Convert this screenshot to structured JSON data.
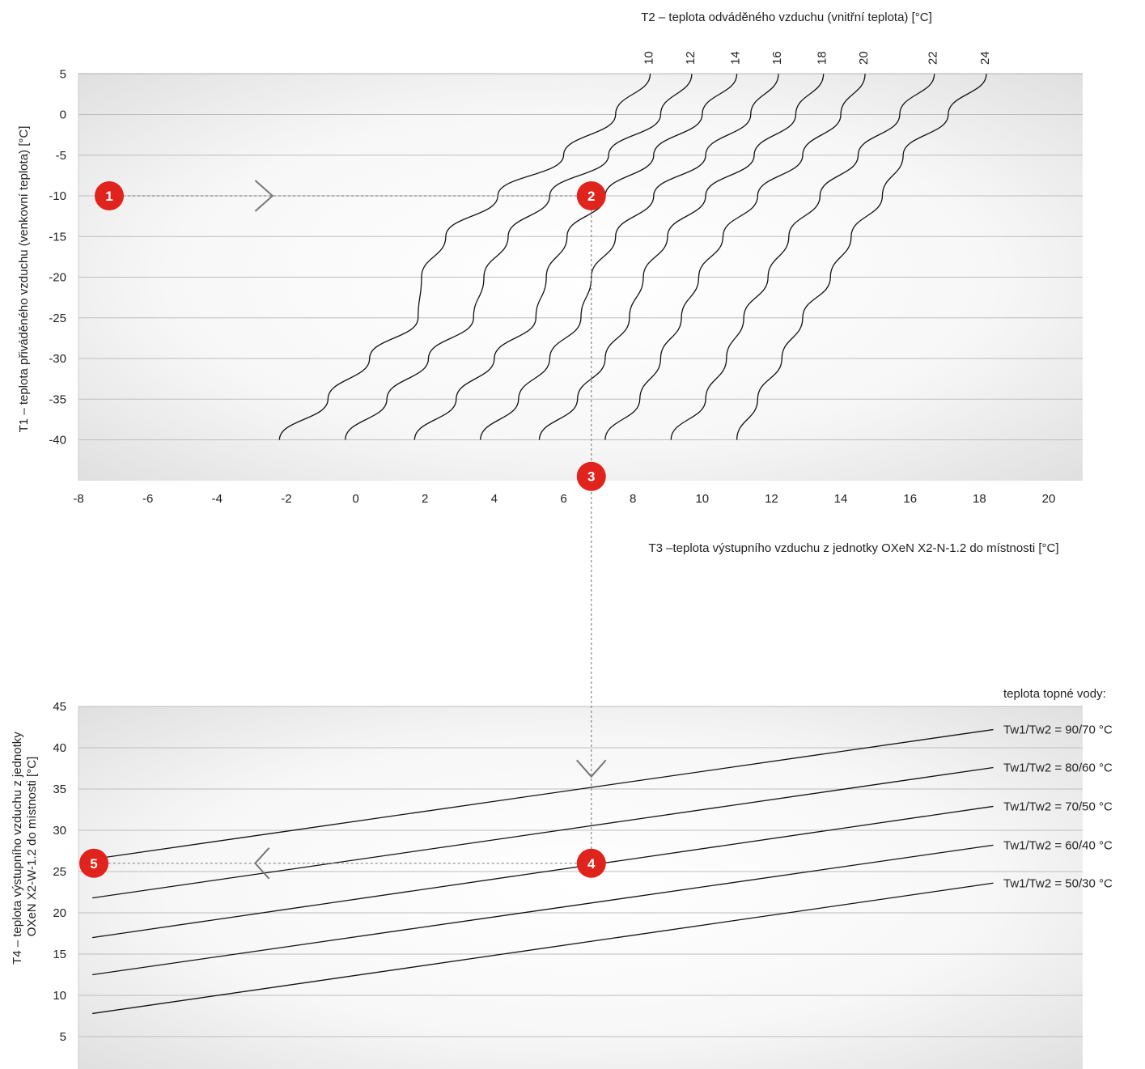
{
  "chart_data": [
    {
      "id": "top",
      "type": "line",
      "xlabel": "T3 –teplota výstupního vzduchu z jednotky OXeN X2-N-1.2 do místnosti [°C]",
      "ylabel": "T1 – teplota přiváděného vzduchu (venkovní teplota) [°C]",
      "top_axis_label": "T2 – teplota odváděného vzduchu (vnitřní teplota) [°C]",
      "xlim": [
        -8,
        21
      ],
      "ylim": [
        -45,
        5
      ],
      "x_ticks": [
        "-8",
        "-6",
        "-4",
        "-2",
        "0",
        "2",
        "4",
        "6",
        "8",
        "10",
        "12",
        "14",
        "16",
        "18",
        "20"
      ],
      "y_ticks": [
        "5",
        "0",
        "-5",
        "-10",
        "-15",
        "-20",
        "-25",
        "-30",
        "-35",
        "-40"
      ],
      "grid": true,
      "series": [
        {
          "name": "10",
          "points": [
            [
              -2.2,
              -40
            ],
            [
              -0.8,
              -35
            ],
            [
              0.4,
              -30
            ],
            [
              1.8,
              -25
            ],
            [
              1.9,
              -20
            ],
            [
              2.6,
              -15
            ],
            [
              4.1,
              -10
            ],
            [
              6.0,
              -5
            ],
            [
              7.5,
              0
            ],
            [
              8.5,
              5
            ]
          ]
        },
        {
          "name": "12",
          "points": [
            [
              -0.3,
              -40
            ],
            [
              0.9,
              -35
            ],
            [
              2.1,
              -30
            ],
            [
              3.4,
              -25
            ],
            [
              3.7,
              -20
            ],
            [
              4.4,
              -15
            ],
            [
              5.6,
              -10
            ],
            [
              7.3,
              -5
            ],
            [
              8.8,
              0
            ],
            [
              9.7,
              5
            ]
          ]
        },
        {
          "name": "14",
          "points": [
            [
              1.7,
              -40
            ],
            [
              2.9,
              -35
            ],
            [
              4.0,
              -30
            ],
            [
              5.2,
              -25
            ],
            [
              5.5,
              -20
            ],
            [
              6.1,
              -15
            ],
            [
              7.2,
              -10
            ],
            [
              8.6,
              -5
            ],
            [
              10.0,
              0
            ],
            [
              11.0,
              5
            ]
          ]
        },
        {
          "name": "16",
          "points": [
            [
              3.6,
              -40
            ],
            [
              4.7,
              -35
            ],
            [
              5.6,
              -30
            ],
            [
              6.5,
              -25
            ],
            [
              6.8,
              -20
            ],
            [
              7.5,
              -15
            ],
            [
              8.6,
              -10
            ],
            [
              10.1,
              -5
            ],
            [
              11.4,
              0
            ],
            [
              12.2,
              5
            ]
          ]
        },
        {
          "name": "18",
          "points": [
            [
              5.3,
              -40
            ],
            [
              6.4,
              -35
            ],
            [
              7.2,
              -30
            ],
            [
              7.9,
              -25
            ],
            [
              8.3,
              -20
            ],
            [
              9.0,
              -15
            ],
            [
              10.1,
              -10
            ],
            [
              11.5,
              -5
            ],
            [
              12.7,
              0
            ],
            [
              13.5,
              5
            ]
          ]
        },
        {
          "name": "20",
          "points": [
            [
              7.2,
              -40
            ],
            [
              8.2,
              -35
            ],
            [
              8.8,
              -30
            ],
            [
              9.4,
              -25
            ],
            [
              9.9,
              -20
            ],
            [
              10.6,
              -15
            ],
            [
              11.6,
              -10
            ],
            [
              12.9,
              -5
            ],
            [
              14.0,
              0
            ],
            [
              14.7,
              5
            ]
          ]
        },
        {
          "name": "22",
          "points": [
            [
              9.1,
              -40
            ],
            [
              10.1,
              -35
            ],
            [
              10.7,
              -30
            ],
            [
              11.2,
              -25
            ],
            [
              11.9,
              -20
            ],
            [
              12.5,
              -15
            ],
            [
              13.4,
              -10
            ],
            [
              14.5,
              -5
            ],
            [
              15.7,
              0
            ],
            [
              16.7,
              5
            ]
          ]
        },
        {
          "name": "24",
          "points": [
            [
              11.0,
              -40
            ],
            [
              11.6,
              -35
            ],
            [
              12.3,
              -30
            ],
            [
              12.9,
              -25
            ],
            [
              13.7,
              -20
            ],
            [
              14.3,
              -15
            ],
            [
              15.2,
              -10
            ],
            [
              15.8,
              -5
            ],
            [
              17.1,
              0
            ],
            [
              18.2,
              5
            ]
          ]
        }
      ]
    },
    {
      "id": "bottom",
      "type": "line",
      "xlabel": "",
      "ylabel": "T4 – teplota výstupního vzduchu z jednotky OXeN X2-W-1.2 do místnosti [°C]",
      "xlim": [
        -8,
        21
      ],
      "ylim": [
        0,
        45
      ],
      "y_ticks": [
        "45",
        "40",
        "35",
        "30",
        "25",
        "20",
        "15",
        "10",
        "5"
      ],
      "grid": true,
      "legend_title": "teplota topné vody:",
      "series": [
        {
          "name": "Tw1/Tw2 = 90/70 °C",
          "points": [
            [
              -7.6,
              26.5
            ],
            [
              18.4,
              42.2
            ]
          ]
        },
        {
          "name": "Tw1/Tw2 = 80/60 °C",
          "points": [
            [
              -7.6,
              21.8
            ],
            [
              18.4,
              37.6
            ]
          ]
        },
        {
          "name": "Tw1/Tw2 = 70/50 °C",
          "points": [
            [
              -7.6,
              17.0
            ],
            [
              18.4,
              32.9
            ]
          ]
        },
        {
          "name": "Tw1/Tw2 = 60/40 °C",
          "points": [
            [
              -7.6,
              12.5
            ],
            [
              18.4,
              28.2
            ]
          ]
        },
        {
          "name": "Tw1/Tw2 = 50/30 °C",
          "points": [
            [
              -7.6,
              7.8
            ],
            [
              18.4,
              23.6
            ]
          ]
        }
      ]
    }
  ],
  "example_path": {
    "color": "#e0231c",
    "t1": -10,
    "t3": 6.8,
    "t4": 26,
    "markers": [
      "1",
      "2",
      "3",
      "4",
      "5"
    ]
  }
}
